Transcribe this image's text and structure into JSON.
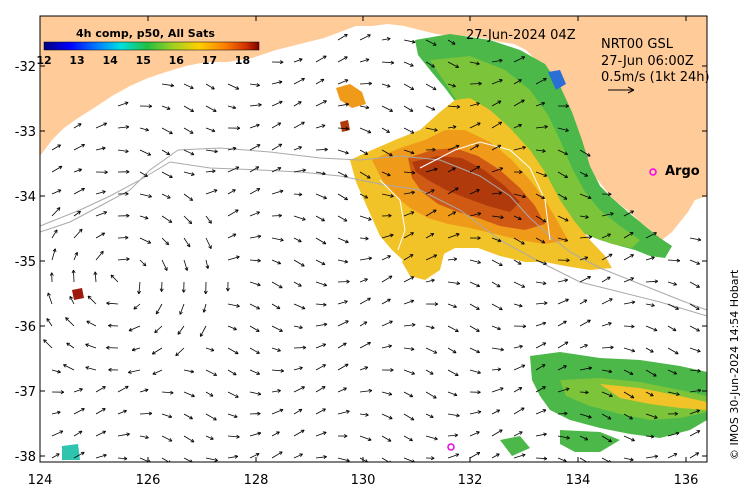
{
  "composite_title": "4h comp, p50, All Sats",
  "date_label": "27-Jun-2024 04Z",
  "product": {
    "line1": "NRT00 GSL",
    "line2": "27-Jun 06:00Z",
    "line3": "0.5m/s (1kt 24h)"
  },
  "argo_label": "Argo",
  "credit": "© IMOS 30-Jun-2024 14:54 Hobart",
  "colorbar": {
    "ticks": [
      "12",
      "13",
      "14",
      "15",
      "16",
      "17",
      "18"
    ],
    "min": 12,
    "max": 18.5
  },
  "axes": {
    "lon_ticks": [
      "124",
      "126",
      "128",
      "130",
      "132",
      "134",
      "136"
    ],
    "lat_ticks": [
      "-32",
      "-33",
      "-34",
      "-35",
      "-36",
      "-37",
      "-38"
    ]
  },
  "colors": {
    "land": "#ffcc99",
    "argo_marker": "#ee00ee",
    "arrow": "#000000",
    "isobath": "#aaaaaa"
  }
}
